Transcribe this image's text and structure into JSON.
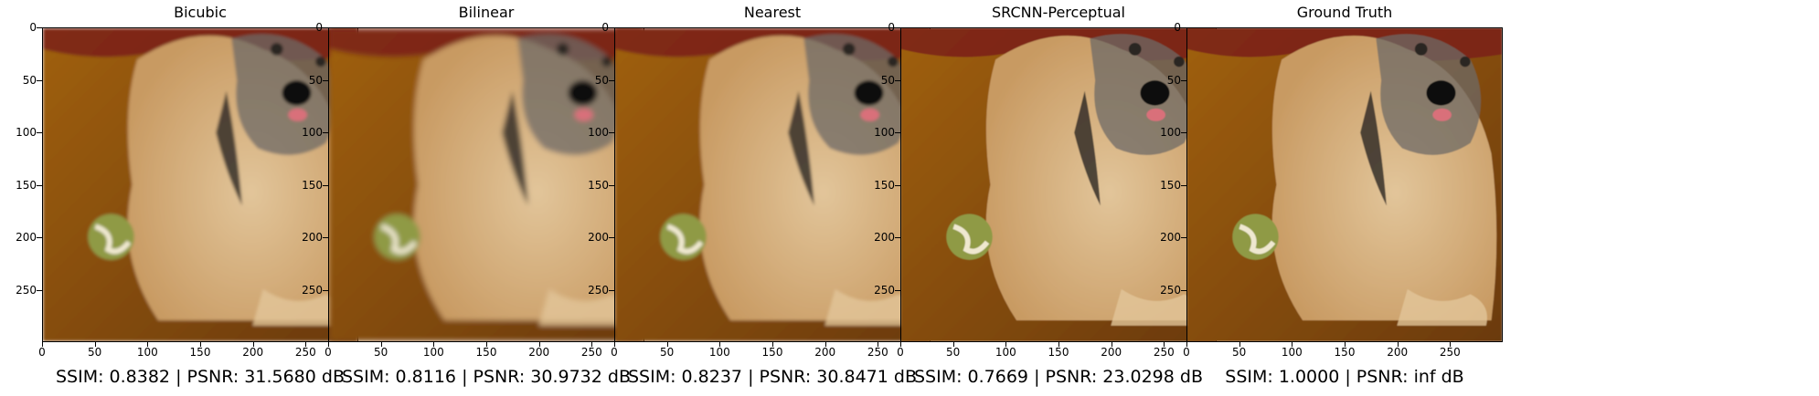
{
  "panels": [
    {
      "title": "Bicubic",
      "caption": "SSIM: 0.8382 | PSNR: 31.5680 dB",
      "filter": "soft"
    },
    {
      "title": "Bilinear",
      "caption": "SSIM: 0.8116 | PSNR: 30.9732 dB",
      "filter": "blur"
    },
    {
      "title": "Nearest",
      "caption": "SSIM: 0.8237 | PSNR: 30.8471 dB",
      "filter": "soft"
    },
    {
      "title": "SRCNN-Perceptual",
      "caption": "SSIM: 0.7669 | PSNR: 23.0298 dB",
      "filter": "sharp"
    },
    {
      "title": "Ground Truth",
      "caption": "SSIM: 1.0000 | PSNR: inf dB",
      "filter": "sharp"
    }
  ],
  "axes": {
    "x_ticks": [
      "0",
      "50",
      "100",
      "150",
      "200",
      "250"
    ],
    "y_ticks": [
      "0",
      "50",
      "100",
      "150",
      "200",
      "250"
    ],
    "x_tick_values": [
      0,
      50,
      100,
      150,
      200,
      250
    ],
    "y_tick_values": [
      0,
      50,
      100,
      150,
      200,
      250
    ],
    "range": [
      0,
      300
    ]
  },
  "colors": {
    "floor": "#a0600f",
    "floor_dark": "#6b3a0b",
    "dog_fur": "#c89a62",
    "dog_fur_light": "#e2c59a",
    "dog_grey": "#6d6a66",
    "dog_dark": "#2a2522",
    "ball": "#8f9a45",
    "rug": "#7a2019"
  }
}
